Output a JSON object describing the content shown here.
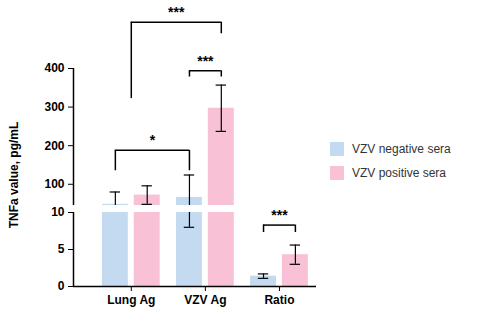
{
  "chart_data": {
    "type": "bar",
    "categories": [
      "Lung Ag",
      "VZV Ag",
      "Ratio"
    ],
    "y_label": "TNFa value, pg/mL",
    "series": [
      {
        "name": "VZV negative sera",
        "color": "#c3daf1",
        "values": [
          48,
          66,
          1.4
        ],
        "errors": [
          32,
          58,
          0.3
        ]
      },
      {
        "name": "VZV positive sera",
        "color": "#f8c1d5",
        "values": [
          72,
          297,
          4.3
        ],
        "errors": [
          24,
          60,
          1.3
        ]
      }
    ],
    "y_segments": [
      {
        "ylim": [
          0,
          10
        ],
        "yticks": [
          0,
          5,
          10
        ]
      },
      {
        "ylim": [
          45,
          400
        ],
        "yticks": [
          100,
          200,
          300,
          400
        ]
      }
    ],
    "legend": "right",
    "annotations": [
      {
        "text": "***",
        "from": {
          "category": "Lung Ag"
        },
        "to": {
          "category": "VZV Ag",
          "series": "VZV positive sera"
        },
        "y": 520,
        "y_from": 322,
        "y_to": 490
      },
      {
        "text": "*",
        "from": {
          "category": "Lung Ag",
          "series": "VZV negative sera"
        },
        "to": {
          "category": "VZV Ag",
          "series": "VZV negative sera"
        },
        "y": 188,
        "y_from": 135,
        "y_to": 135
      },
      {
        "text": "***",
        "from": {
          "category": "VZV Ag",
          "series": "VZV negative sera"
        },
        "to": {
          "category": "VZV Ag",
          "series": "VZV positive sera"
        },
        "y": 394,
        "y_from": 378,
        "y_to": 378
      },
      {
        "text": "***",
        "from": {
          "category": "Ratio",
          "series": "VZV negative sera"
        },
        "to": {
          "category": "Ratio",
          "series": "VZV positive sera"
        },
        "y": 8.3,
        "y_from": 7.3,
        "y_to": 7.3
      }
    ]
  }
}
